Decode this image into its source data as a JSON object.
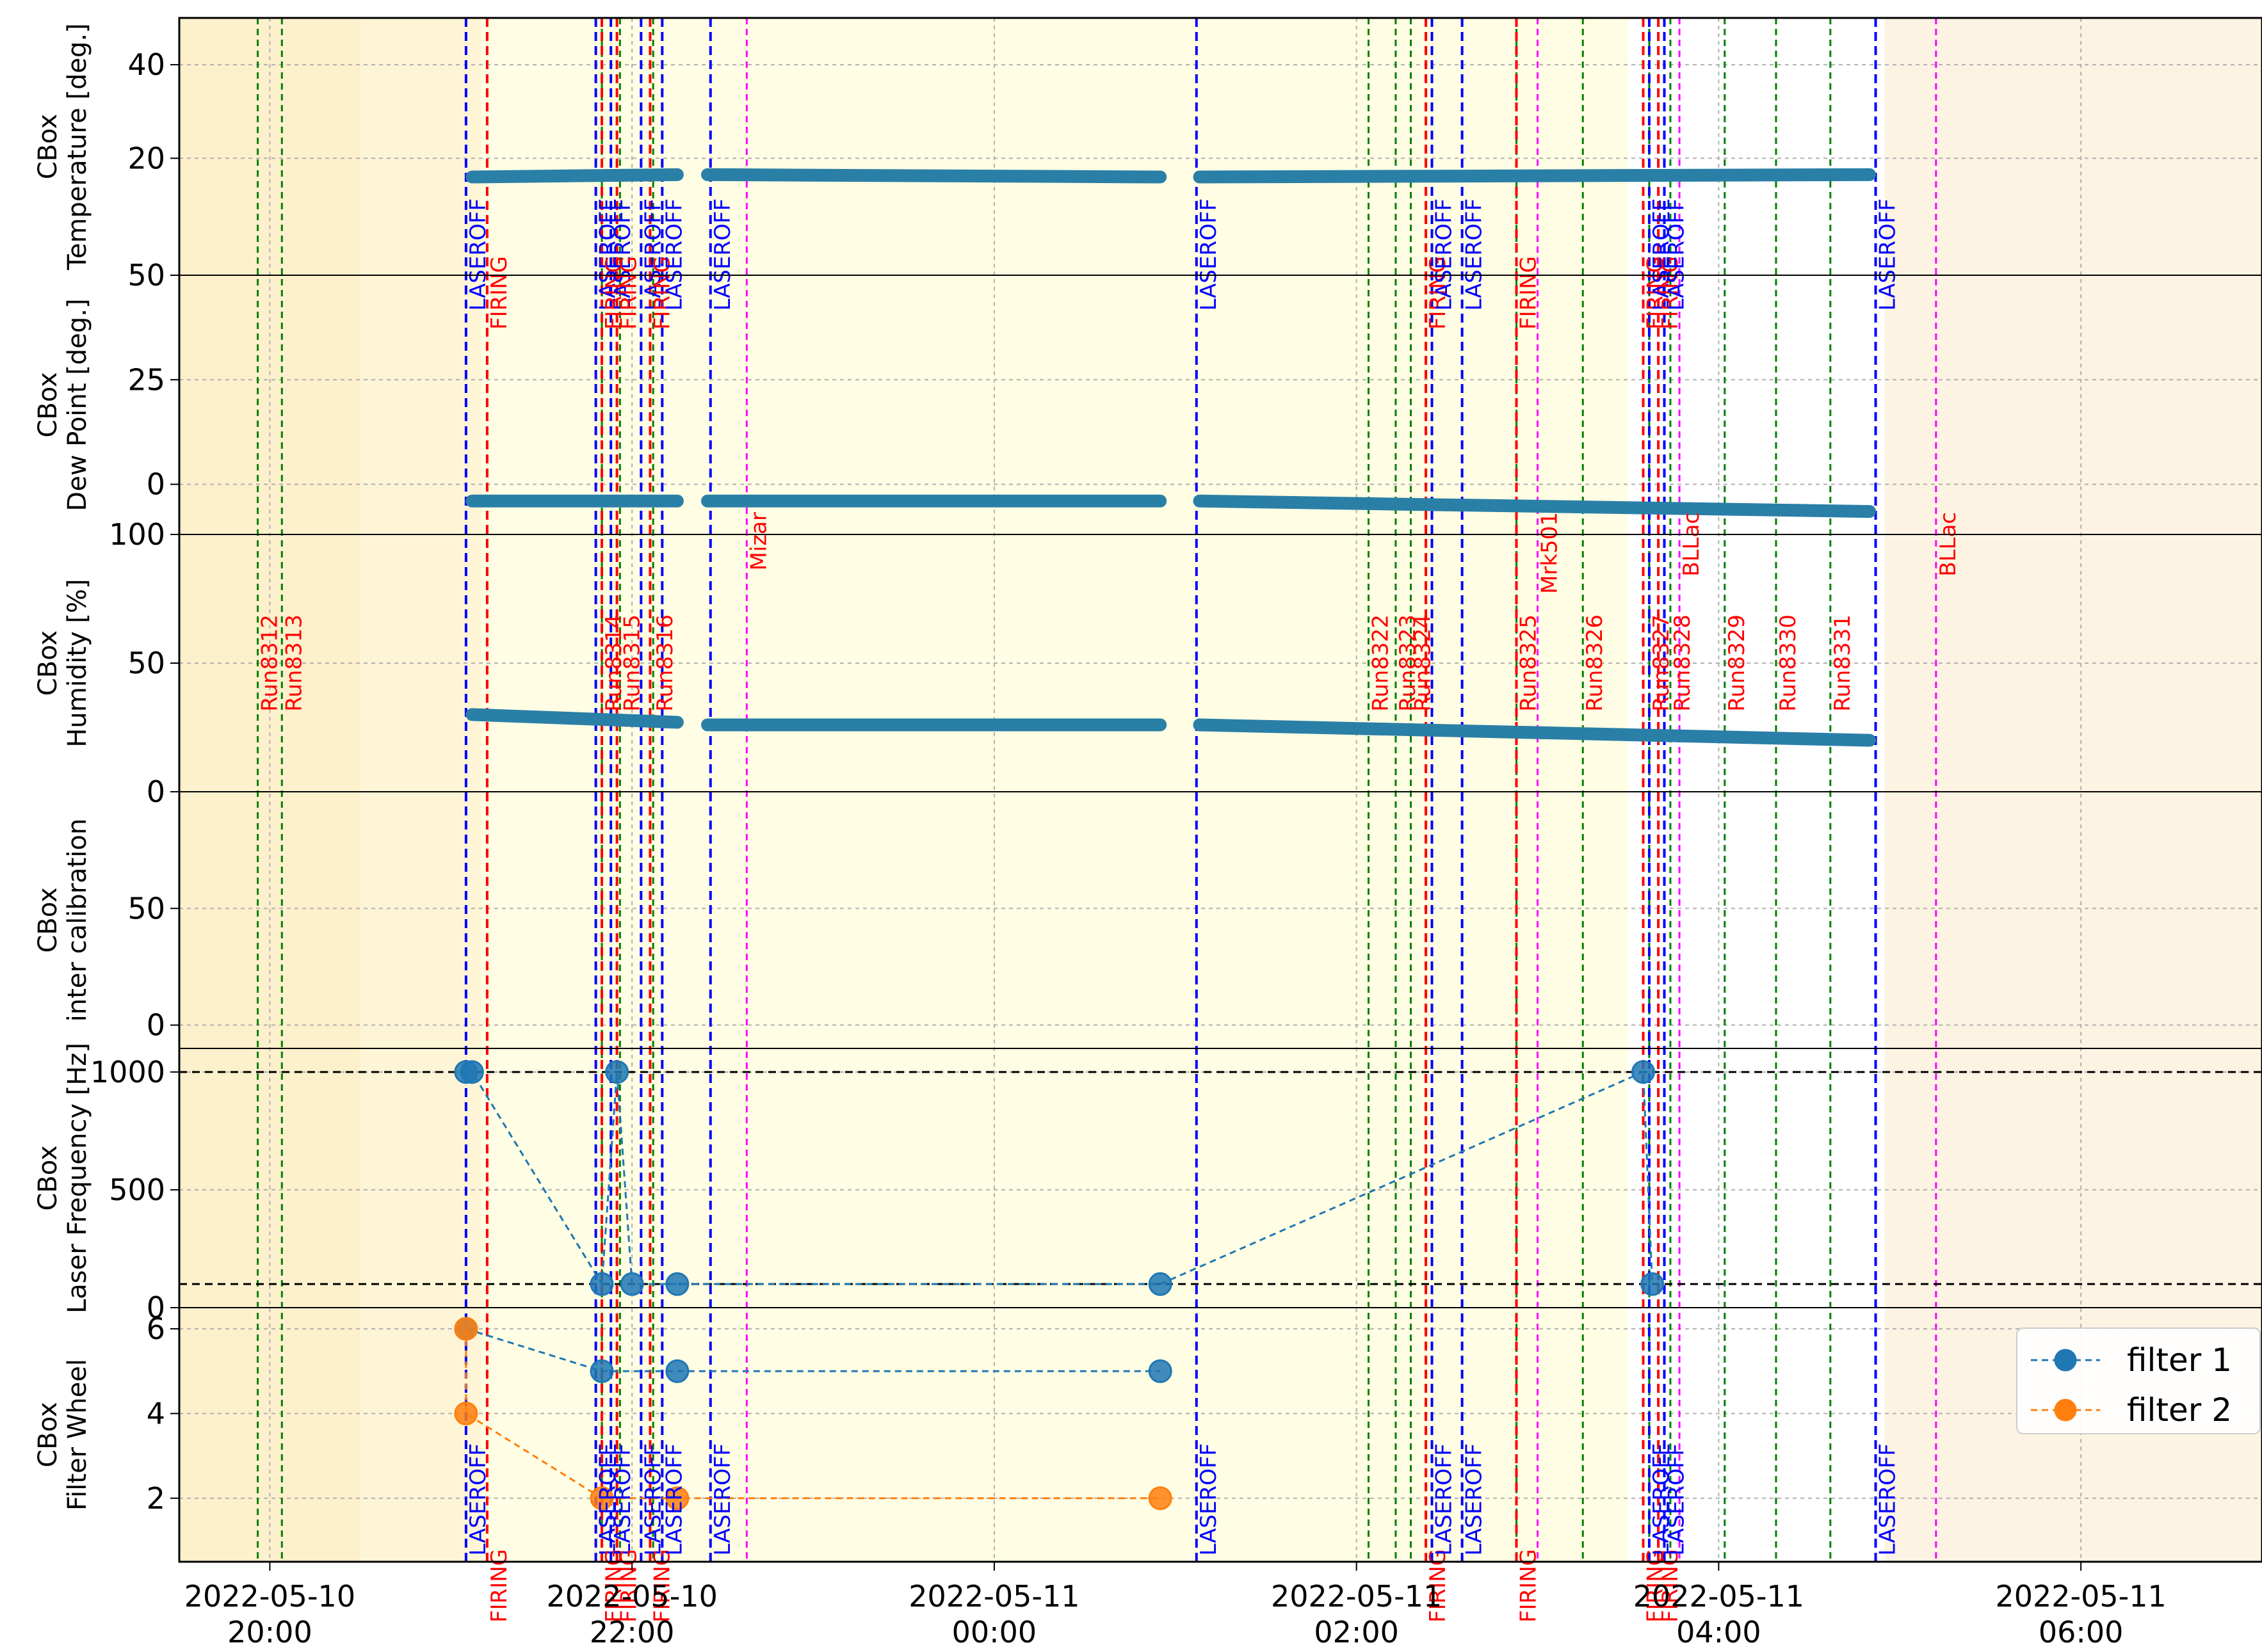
{
  "chart_data": {
    "type": "line",
    "x_range": [
      "2022-05-10 19:30",
      "2022-05-11 07:00"
    ],
    "x_ticks": [
      {
        "time": "2022-05-10 20:00",
        "label": "2022-05-10\n20:00"
      },
      {
        "time": "2022-05-10 22:00",
        "label": "2022-05-10\n22:00"
      },
      {
        "time": "2022-05-11 00:00",
        "label": "2022-05-11\n00:00"
      },
      {
        "time": "2022-05-11 02:00",
        "label": "2022-05-11\n02:00"
      },
      {
        "time": "2022-05-11 04:00",
        "label": "2022-05-11\n04:00"
      },
      {
        "time": "2022-05-11 06:00",
        "label": "2022-05-11\n06:00"
      }
    ],
    "grid": true,
    "panels": [
      {
        "key": "temp",
        "ylabel": [
          "CBox",
          "Temperature [deg.]"
        ],
        "ylim": [
          -5,
          50
        ],
        "yticks": [
          20,
          40
        ],
        "tick_labels": [
          "20",
          "40"
        ],
        "series": [
          {
            "color": "#2a7fa7",
            "style": "band",
            "segments": [
              {
                "x0": "2022-05-10 21:07",
                "x1": "2022-05-10 22:15",
                "y0": 16.0,
                "y1": 16.5
              },
              {
                "x0": "2022-05-10 22:25",
                "x1": "2022-05-11 00:55",
                "y0": 16.5,
                "y1": 16.0
              },
              {
                "x0": "2022-05-11 01:08",
                "x1": "2022-05-11 04:50",
                "y0": 16.0,
                "y1": 16.5
              }
            ]
          }
        ]
      },
      {
        "key": "dew",
        "ylabel": [
          "CBox",
          "Dew Point [deg.]"
        ],
        "ylim": [
          -12,
          50
        ],
        "yticks": [
          0,
          25,
          50
        ],
        "tick_labels": [
          "0",
          "25",
          "50"
        ],
        "series": [
          {
            "color": "#2a7fa7",
            "style": "band",
            "segments": [
              {
                "x0": "2022-05-10 21:07",
                "x1": "2022-05-10 22:15",
                "y0": -4.0,
                "y1": -4.0
              },
              {
                "x0": "2022-05-10 22:25",
                "x1": "2022-05-11 00:55",
                "y0": -4.0,
                "y1": -4.0
              },
              {
                "x0": "2022-05-11 01:08",
                "x1": "2022-05-11 04:50",
                "y0": -4.0,
                "y1": -6.5
              }
            ]
          }
        ]
      },
      {
        "key": "hum",
        "ylabel": [
          "CBox",
          "Humidity [%]"
        ],
        "ylim": [
          0,
          100
        ],
        "yticks": [
          0,
          50,
          100
        ],
        "tick_labels": [
          "0",
          "50",
          "100"
        ],
        "series": [
          {
            "color": "#2a7fa7",
            "style": "band",
            "segments": [
              {
                "x0": "2022-05-10 21:07",
                "x1": "2022-05-10 22:15",
                "y0": 30,
                "y1": 27
              },
              {
                "x0": "2022-05-10 22:25",
                "x1": "2022-05-11 00:55",
                "y0": 26,
                "y1": 26
              },
              {
                "x0": "2022-05-11 01:08",
                "x1": "2022-05-11 04:50",
                "y0": 26,
                "y1": 20
              }
            ]
          }
        ]
      },
      {
        "key": "cal",
        "ylabel": [
          "CBox",
          "inter calibration"
        ],
        "ylim": [
          -10,
          100
        ],
        "yticks": [
          0,
          50
        ],
        "tick_labels": [
          "0",
          "50"
        ],
        "series": []
      },
      {
        "key": "freq",
        "ylabel": [
          "CBox",
          "Laser Frequency [Hz]"
        ],
        "ylim": [
          0,
          1100
        ],
        "yticks": [
          0,
          500,
          1000
        ],
        "tick_labels": [
          "0",
          "500",
          "1000"
        ],
        "hlines": [
          1000,
          100
        ],
        "series": [
          {
            "name": "filter 1",
            "color": "#1f77b4",
            "points": [
              [
                "2022-05-10 21:05",
                1000
              ],
              [
                "2022-05-10 21:07",
                1000
              ],
              [
                "2022-05-10 21:50",
                100
              ],
              [
                "2022-05-10 21:55",
                1000
              ],
              [
                "2022-05-10 22:00",
                100
              ],
              [
                "2022-05-10 22:15",
                100
              ],
              [
                "2022-05-11 00:55",
                100
              ],
              [
                "2022-05-11 03:35",
                1000
              ],
              [
                "2022-05-11 03:38",
                100
              ]
            ]
          }
        ]
      },
      {
        "key": "filter",
        "ylabel": [
          "CBox",
          "Filter Wheel"
        ],
        "ylim": [
          0.5,
          6.5
        ],
        "yticks": [
          2,
          4,
          6
        ],
        "tick_labels": [
          "2",
          "4",
          "6"
        ],
        "series": [
          {
            "name": "filter 1",
            "color": "#1f77b4",
            "points": [
              [
                "2022-05-10 21:05",
                6
              ],
              [
                "2022-05-10 21:50",
                5
              ],
              [
                "2022-05-10 22:15",
                5
              ],
              [
                "2022-05-11 00:55",
                5
              ]
            ]
          },
          {
            "name": "filter 2",
            "color": "#ff7f0e",
            "points": [
              [
                "2022-05-10 21:05",
                6
              ],
              [
                "2022-05-10 21:05",
                4
              ],
              [
                "2022-05-10 21:50",
                2
              ],
              [
                "2022-05-10 22:15",
                2
              ],
              [
                "2022-05-11 00:55",
                2
              ]
            ]
          }
        ]
      }
    ],
    "events": [
      {
        "time": "2022-05-10 21:05",
        "type": "LASEROFF"
      },
      {
        "time": "2022-05-10 21:12",
        "type": "FIRING"
      },
      {
        "time": "2022-05-10 21:48",
        "type": "LASEROFF"
      },
      {
        "time": "2022-05-10 21:50",
        "type": "FIRING"
      },
      {
        "time": "2022-05-10 21:53",
        "type": "LASEROFF"
      },
      {
        "time": "2022-05-10 21:55",
        "type": "FIRING"
      },
      {
        "time": "2022-05-10 22:03",
        "type": "LASEROFF"
      },
      {
        "time": "2022-05-10 22:06",
        "type": "FIRING"
      },
      {
        "time": "2022-05-10 22:10",
        "type": "LASEROFF"
      },
      {
        "time": "2022-05-10 22:26",
        "type": "LASEROFF"
      },
      {
        "time": "2022-05-11 01:07",
        "type": "LASEROFF"
      },
      {
        "time": "2022-05-11 02:23",
        "type": "FIRING"
      },
      {
        "time": "2022-05-11 02:25",
        "type": "LASEROFF"
      },
      {
        "time": "2022-05-11 02:35",
        "type": "LASEROFF"
      },
      {
        "time": "2022-05-11 02:53",
        "type": "FIRING"
      },
      {
        "time": "2022-05-11 03:35",
        "type": "FIRING"
      },
      {
        "time": "2022-05-11 03:37",
        "type": "LASEROFF"
      },
      {
        "time": "2022-05-11 03:40",
        "type": "FIRING"
      },
      {
        "time": "2022-05-11 03:42",
        "type": "LASEROFF"
      },
      {
        "time": "2022-05-11 04:52",
        "type": "LASEROFF"
      }
    ],
    "runs": [
      {
        "time": "2022-05-10 19:56",
        "label": "Run8312"
      },
      {
        "time": "2022-05-10 20:04",
        "label": "Run8313"
      },
      {
        "time": "2022-05-10 21:50",
        "label": "Run8314"
      },
      {
        "time": "2022-05-10 21:56",
        "label": "Run8315"
      },
      {
        "time": "2022-05-10 22:07",
        "label": "Run8316"
      },
      {
        "time": "2022-05-11 02:04",
        "label": "Run8322"
      },
      {
        "time": "2022-05-11 02:13",
        "label": "Run8323"
      },
      {
        "time": "2022-05-11 02:18",
        "label": "Run8324"
      },
      {
        "time": "2022-05-11 02:53",
        "label": "Run8325"
      },
      {
        "time": "2022-05-11 03:15",
        "label": "Run8326"
      },
      {
        "time": "2022-05-11 03:37",
        "label": "Run8327"
      },
      {
        "time": "2022-05-11 03:44",
        "label": "Run8328"
      },
      {
        "time": "2022-05-11 04:02",
        "label": "Run8329"
      },
      {
        "time": "2022-05-11 04:19",
        "label": "Run8330"
      },
      {
        "time": "2022-05-11 04:37",
        "label": "Run8331"
      }
    ],
    "targets": [
      {
        "time": "2022-05-10 22:38",
        "label": "Mizar"
      },
      {
        "time": "2022-05-11 03:00",
        "label": "Mrk501"
      },
      {
        "time": "2022-05-11 03:47",
        "label": "BLLac"
      },
      {
        "time": "2022-05-11 05:12",
        "label": "BLLac"
      }
    ],
    "shading": [
      {
        "x0": "2022-05-10 19:30",
        "x1": "2022-05-10 20:30",
        "color": "#fdf0cc"
      },
      {
        "x0": "2022-05-10 20:30",
        "x1": "2022-05-10 21:10",
        "color": "#fef5d6"
      },
      {
        "x0": "2022-05-10 21:10",
        "x1": "2022-05-11 03:30",
        "color": "#fffde3"
      },
      {
        "x0": "2022-05-11 03:30",
        "x1": "2022-05-11 04:55",
        "color": "#ffffff"
      },
      {
        "x0": "2022-05-11 04:55",
        "x1": "2022-05-11 07:00",
        "color": "#fdf3e3"
      }
    ],
    "legend": {
      "placement": "lower-right",
      "entries": [
        {
          "label": "filter 1",
          "color": "#1f77b4"
        },
        {
          "label": "filter 2",
          "color": "#ff7f0e"
        }
      ]
    },
    "colors": {
      "LASEROFF": "#0000ff",
      "FIRING": "#ff0000",
      "run": "#008000",
      "target": "#ff00ff"
    }
  }
}
